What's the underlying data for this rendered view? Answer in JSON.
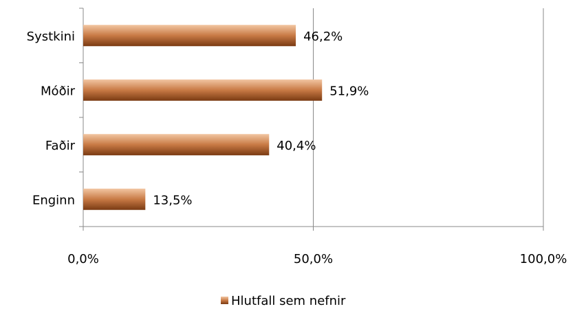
{
  "chart_data": {
    "type": "bar",
    "orientation": "horizontal",
    "categories": [
      "Systkini",
      "Móðir",
      "Faðir",
      "Enginn"
    ],
    "series": [
      {
        "name": "Hlutfall sem nefnir",
        "color": "#b8662e",
        "values": [
          46.2,
          51.9,
          40.4,
          13.5
        ],
        "value_labels": [
          "46,2%",
          "51,9%",
          "40,4%",
          "13,5%"
        ]
      }
    ],
    "xlim": [
      0,
      100
    ],
    "xticks": [
      {
        "value": 0,
        "label": "0,0%"
      },
      {
        "value": 50,
        "label": "50,0%"
      },
      {
        "value": 100,
        "label": "100,0%"
      }
    ],
    "grid": true,
    "legend": "bottom"
  }
}
